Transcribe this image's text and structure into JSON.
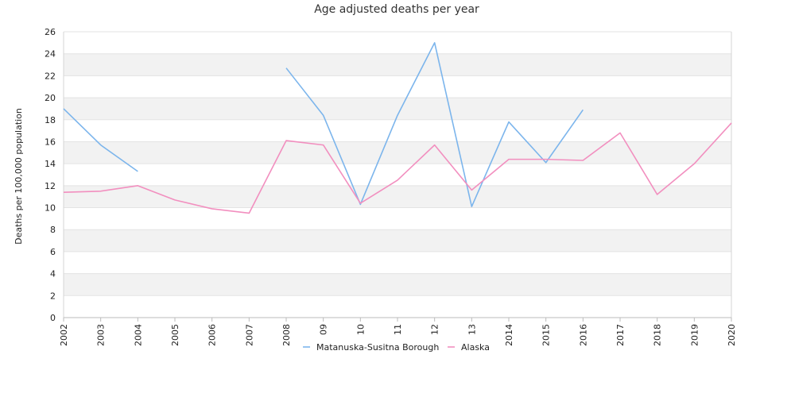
{
  "chart_data": {
    "type": "line",
    "title": "Age adjusted deaths per year",
    "xlabel": "",
    "ylabel": "Deaths per 100,000 population",
    "categories": [
      "2002",
      "2003",
      "2004",
      "2005",
      "2006",
      "2007",
      "2008",
      "09",
      "10",
      "11",
      "12",
      "13",
      "2014",
      "2015",
      "2016",
      "2017",
      "2018",
      "2019",
      "2020"
    ],
    "ylim": [
      0,
      26
    ],
    "yticks": [
      0,
      2,
      4,
      6,
      8,
      10,
      12,
      14,
      16,
      18,
      20,
      22,
      24,
      26
    ],
    "grid": "horizontal alternating bands",
    "legend_position": "bottom-center",
    "series": [
      {
        "name": "Matanuska-Susitna Borough",
        "color": "#7cb5ec",
        "values": [
          19.0,
          15.7,
          13.3,
          null,
          null,
          null,
          22.7,
          18.4,
          10.3,
          18.4,
          25.0,
          10.1,
          17.8,
          14.1,
          18.9,
          null,
          null,
          null,
          null
        ]
      },
      {
        "name": "Alaska",
        "color": "#f28fbf",
        "values": [
          11.4,
          11.5,
          12.0,
          10.7,
          9.9,
          9.5,
          16.1,
          15.7,
          10.4,
          12.5,
          15.7,
          11.6,
          14.4,
          14.4,
          14.3,
          16.8,
          11.2,
          14.0,
          17.7
        ]
      }
    ]
  }
}
